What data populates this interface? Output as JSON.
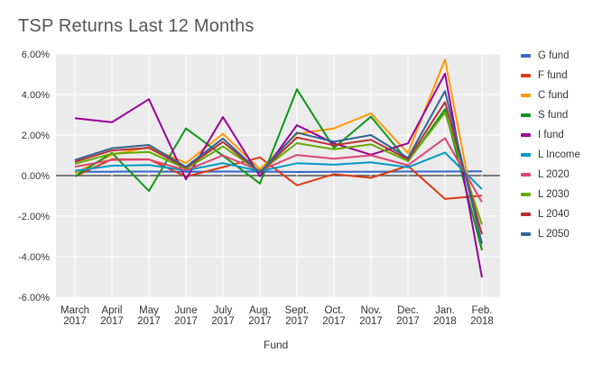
{
  "chart_data": {
    "type": "line",
    "title": "TSP Returns Last 12 Months",
    "xlabel": "Fund",
    "ylabel": "",
    "ylim": [
      -6,
      6
    ],
    "yticks": [
      {
        "value": 6,
        "label": "6.00%"
      },
      {
        "value": 4,
        "label": "4.00%"
      },
      {
        "value": 2,
        "label": "2.00%"
      },
      {
        "value": 0,
        "label": "0.00%"
      },
      {
        "value": -2,
        "label": "-2.00%"
      },
      {
        "value": -4,
        "label": "-4.00%"
      },
      {
        "value": -6,
        "label": "-6.00%"
      }
    ],
    "categories": [
      [
        "March",
        "2017"
      ],
      [
        "April",
        "2017"
      ],
      [
        "May",
        "2017"
      ],
      [
        "June",
        "2017"
      ],
      [
        "July",
        "2017"
      ],
      [
        "Aug.",
        "2017"
      ],
      [
        "Sept.",
        "2017"
      ],
      [
        "Oct.",
        "2017"
      ],
      [
        "Nov.",
        "2017"
      ],
      [
        "Dec.",
        "2017"
      ],
      [
        "Jan.",
        "2018"
      ],
      [
        "Feb.",
        "2018"
      ]
    ],
    "series": [
      {
        "name": "G fund",
        "color": "#3366cc",
        "values": [
          0.19,
          0.19,
          0.2,
          0.19,
          0.2,
          0.2,
          0.18,
          0.19,
          0.19,
          0.2,
          0.2,
          0.21
        ]
      },
      {
        "name": "F fund",
        "color": "#dc3912",
        "values": [
          -0.04,
          0.81,
          0.8,
          -0.05,
          0.42,
          0.9,
          -0.48,
          0.07,
          -0.11,
          0.48,
          -1.15,
          -0.99
        ]
      },
      {
        "name": "C fund",
        "color": "#ff9900",
        "values": [
          0.12,
          1.03,
          1.41,
          0.62,
          2.06,
          0.31,
          2.06,
          2.33,
          3.07,
          1.11,
          5.73,
          -3.69
        ]
      },
      {
        "name": "S fund",
        "color": "#109618",
        "values": [
          -0.04,
          1.12,
          -0.76,
          2.33,
          0.98,
          -0.39,
          4.26,
          1.37,
          2.91,
          0.7,
          3.27,
          -3.69
        ]
      },
      {
        "name": "I fund",
        "color": "#990099",
        "values": [
          2.83,
          2.63,
          3.77,
          -0.18,
          2.89,
          -0.03,
          2.49,
          1.59,
          1.03,
          1.59,
          5.03,
          -5.03
        ]
      },
      {
        "name": "L Income",
        "color": "#0099c6",
        "values": [
          0.23,
          0.49,
          0.52,
          0.26,
          0.62,
          0.22,
          0.61,
          0.54,
          0.66,
          0.41,
          1.14,
          -0.67
        ]
      },
      {
        "name": "L 2020",
        "color": "#dd4477",
        "values": [
          0.44,
          0.77,
          0.79,
          0.26,
          1.0,
          0.24,
          1.02,
          0.83,
          1.0,
          0.51,
          1.85,
          -1.31
        ]
      },
      {
        "name": "L 2030",
        "color": "#66aa00",
        "values": [
          0.58,
          1.08,
          1.17,
          0.34,
          1.44,
          0.19,
          1.6,
          1.3,
          1.54,
          0.72,
          3.11,
          -2.42
        ]
      },
      {
        "name": "L 2040",
        "color": "#b82e2e",
        "values": [
          0.68,
          1.24,
          1.37,
          0.39,
          1.66,
          0.16,
          1.88,
          1.5,
          1.77,
          0.8,
          3.62,
          -2.9
        ]
      },
      {
        "name": "L 2050",
        "color": "#316395",
        "values": [
          0.77,
          1.35,
          1.51,
          0.43,
          1.83,
          0.15,
          2.12,
          1.67,
          2.0,
          0.87,
          4.17,
          -3.36
        ]
      }
    ]
  }
}
